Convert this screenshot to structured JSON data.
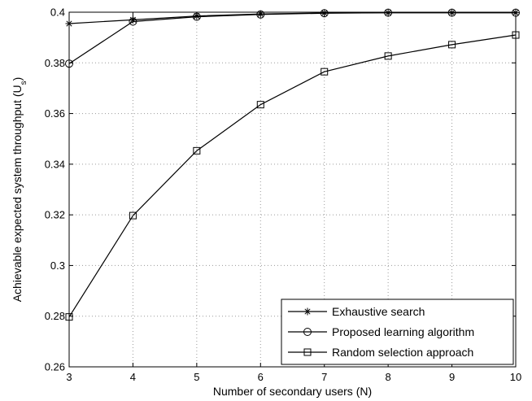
{
  "chart_data": {
    "type": "line",
    "title": "",
    "xlabel": "Number of secondary users (N)",
    "ylabel_main": "Achievable expected system throughput (U",
    "ylabel_sub": "s",
    "ylabel_close": ")",
    "x": [
      3,
      4,
      5,
      6,
      7,
      8,
      9,
      10
    ],
    "xlim": [
      3,
      10
    ],
    "ylim": [
      0.26,
      0.4
    ],
    "xticks": [
      3,
      4,
      5,
      6,
      7,
      8,
      9,
      10
    ],
    "yticks": [
      0.26,
      0.28,
      0.3,
      0.32,
      0.34,
      0.36,
      0.38,
      0.4
    ],
    "ytick_labels": [
      "0.26",
      "0.28",
      "0.3",
      "0.32",
      "0.34",
      "0.36",
      "0.38",
      "0.4"
    ],
    "grid": true,
    "legend_position": "bottom-right",
    "series": [
      {
        "name": "Exhaustive search",
        "marker": "asterisk",
        "values": [
          0.3955,
          0.397,
          0.3985,
          0.3993,
          0.3997,
          0.3998,
          0.3998,
          0.3998
        ]
      },
      {
        "name": "Proposed learning algorithm",
        "marker": "circle",
        "values": [
          0.3797,
          0.3963,
          0.3982,
          0.3991,
          0.3996,
          0.3998,
          0.3998,
          0.3998
        ]
      },
      {
        "name": "Random selection approach",
        "marker": "square",
        "values": [
          0.2797,
          0.3197,
          0.3453,
          0.3635,
          0.3765,
          0.3827,
          0.3872,
          0.391
        ]
      }
    ]
  }
}
